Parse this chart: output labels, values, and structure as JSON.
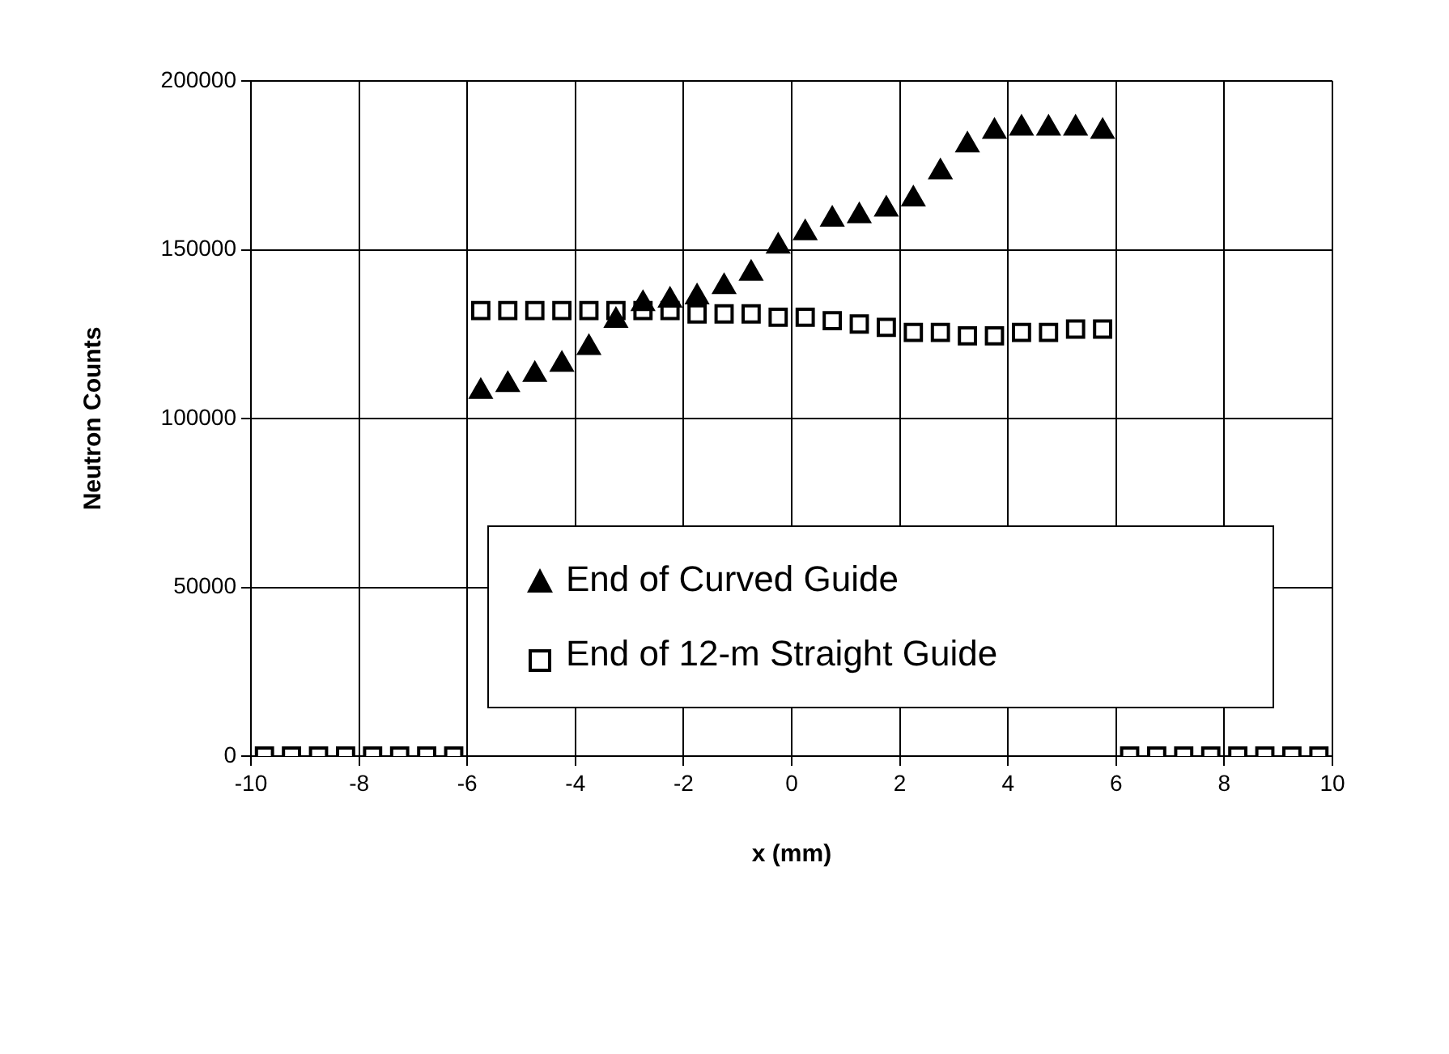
{
  "chart_data": {
    "type": "scatter",
    "xlabel": "x (mm)",
    "ylabel": "Neutron Counts",
    "x": [
      -9.75,
      -9.25,
      -8.75,
      -8.25,
      -7.75,
      -7.25,
      -6.75,
      -6.25,
      -5.75,
      -5.25,
      -4.75,
      -4.25,
      -3.75,
      -3.25,
      -2.75,
      -2.25,
      -1.75,
      -1.25,
      -0.75,
      -0.25,
      0.25,
      0.75,
      1.25,
      1.75,
      2.25,
      2.75,
      3.25,
      3.75,
      4.25,
      4.75,
      5.25,
      5.75,
      6.25,
      6.75,
      7.25,
      7.75,
      8.25,
      8.75,
      9.25,
      9.75
    ],
    "series": [
      {
        "name": "End of Curved Guide",
        "color": "#000000",
        "marker": "triangle",
        "values": [
          null,
          null,
          null,
          null,
          null,
          null,
          null,
          null,
          108000,
          110000,
          113000,
          116000,
          121000,
          129000,
          134000,
          135000,
          136000,
          139000,
          143000,
          151000,
          155000,
          159000,
          160000,
          162000,
          165000,
          173000,
          181000,
          185000,
          186000,
          186000,
          186000,
          185000,
          null,
          null,
          null,
          null,
          null,
          null,
          null,
          null
        ]
      },
      {
        "name": "End of 12-m Straight Guide",
        "color": "#000000",
        "marker": "square",
        "values": [
          0,
          0,
          0,
          0,
          0,
          0,
          0,
          0,
          132000,
          132000,
          132000,
          132000,
          132000,
          132000,
          132000,
          132000,
          131000,
          131000,
          131000,
          130000,
          130000,
          129000,
          128000,
          127000,
          125500,
          125500,
          124500,
          124500,
          125500,
          125500,
          126500,
          126500,
          0,
          0,
          0,
          0,
          0,
          0,
          0,
          0
        ]
      }
    ],
    "xlim": [
      -10,
      10
    ],
    "xticks": [
      -10,
      -8,
      -6,
      -4,
      -2,
      0,
      2,
      4,
      6,
      8,
      10
    ],
    "ylim": [
      0,
      200000
    ],
    "yticks": [
      0,
      50000,
      100000,
      150000,
      200000
    ],
    "grid": true,
    "legend": "bottom"
  }
}
